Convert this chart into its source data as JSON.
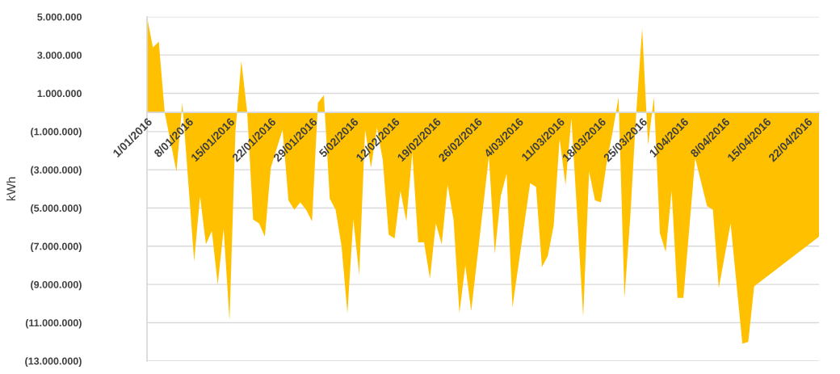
{
  "chart_data": {
    "type": "area",
    "ylabel": "kWh",
    "x": [
      "2016-01-01",
      "2016-01-02",
      "2016-01-03",
      "2016-01-04",
      "2016-01-06",
      "2016-01-07",
      "2016-01-09",
      "2016-01-10",
      "2016-01-11",
      "2016-01-12",
      "2016-01-13",
      "2016-01-14",
      "2016-01-15",
      "2016-01-16",
      "2016-01-17",
      "2016-01-18",
      "2016-01-19",
      "2016-01-20",
      "2016-01-21",
      "2016-01-22",
      "2016-01-24",
      "2016-01-25",
      "2016-01-26",
      "2016-01-27",
      "2016-01-28",
      "2016-01-29",
      "2016-01-30",
      "2016-01-31",
      "2016-02-01",
      "2016-02-02",
      "2016-02-03",
      "2016-02-04",
      "2016-02-05",
      "2016-02-06",
      "2016-02-07",
      "2016-02-08",
      "2016-02-09",
      "2016-02-10",
      "2016-02-11",
      "2016-02-12",
      "2016-02-13",
      "2016-02-14",
      "2016-02-15",
      "2016-02-16",
      "2016-02-17",
      "2016-02-18",
      "2016-02-19",
      "2016-02-20",
      "2016-02-21",
      "2016-02-22",
      "2016-02-23",
      "2016-02-24",
      "2016-02-25",
      "2016-02-28",
      "2016-02-29",
      "2016-03-01",
      "2016-03-02",
      "2016-03-03",
      "2016-03-06",
      "2016-03-07",
      "2016-03-08",
      "2016-03-09",
      "2016-03-10",
      "2016-03-11",
      "2016-03-12",
      "2016-03-13",
      "2016-03-15",
      "2016-03-16",
      "2016-03-17",
      "2016-03-18",
      "2016-03-19",
      "2016-03-20",
      "2016-03-21",
      "2016-03-22",
      "2016-03-23",
      "2016-03-24",
      "2016-03-25",
      "2016-03-26",
      "2016-03-27",
      "2016-03-28",
      "2016-03-29",
      "2016-03-30",
      "2016-03-31",
      "2016-04-01",
      "2016-04-03",
      "2016-04-05",
      "2016-04-06",
      "2016-04-07",
      "2016-04-09",
      "2016-04-11",
      "2016-04-12",
      "2016-04-13",
      "2016-04-24"
    ],
    "series": [
      {
        "color": "#ffc000",
        "values": [
          5000000,
          3400000,
          3700000,
          0,
          -3100000,
          500000,
          -7800000,
          -4400000,
          -6900000,
          -6200000,
          -9000000,
          -6100000,
          -10900000,
          -1000000,
          2700000,
          0,
          -5600000,
          -5800000,
          -6500000,
          -2900000,
          -900000,
          -4600000,
          -5100000,
          -4700000,
          -5100000,
          -5700000,
          500000,
          900000,
          -4500000,
          -5100000,
          -7000000,
          -10500000,
          -5600000,
          -8500000,
          -900000,
          -2900000,
          -800000,
          -2500000,
          -6400000,
          -6600000,
          -4100000,
          -5700000,
          -2100000,
          -6800000,
          -6800000,
          -8700000,
          -5800000,
          -6900000,
          -3800000,
          -5600000,
          -10500000,
          -8000000,
          -10400000,
          -2300000,
          -7400000,
          -4400000,
          -3200000,
          -10200000,
          -3700000,
          -3900000,
          -8100000,
          -7500000,
          -5900000,
          -1400000,
          -3800000,
          -300000,
          -10700000,
          -3100000,
          -4600000,
          -4700000,
          -2600000,
          -1000000,
          800000,
          -9700000,
          -5400000,
          0,
          4400000,
          -1700000,
          800000,
          -6300000,
          -7300000,
          -4100000,
          -9700000,
          -9700000,
          -2400000,
          -4900000,
          -5100000,
          -9200000,
          -5800000,
          -12100000,
          -12000000,
          -9100000,
          -6500000
        ]
      }
    ],
    "xlim": [
      "2016-01-01",
      "2016-04-24"
    ],
    "xticks": [
      {
        "value": "2016-01-01",
        "label": "1/01/2016"
      },
      {
        "value": "2016-01-08",
        "label": "8/01/2016"
      },
      {
        "value": "2016-01-15",
        "label": "15/01/2016"
      },
      {
        "value": "2016-01-22",
        "label": "22/01/2016"
      },
      {
        "value": "2016-01-29",
        "label": "29/01/2016"
      },
      {
        "value": "2016-02-05",
        "label": "5/02/2016"
      },
      {
        "value": "2016-02-12",
        "label": "12/02/2016"
      },
      {
        "value": "2016-02-19",
        "label": "19/02/2016"
      },
      {
        "value": "2016-02-26",
        "label": "26/02/2016"
      },
      {
        "value": "2016-03-04",
        "label": "4/03/2016"
      },
      {
        "value": "2016-03-11",
        "label": "11/03/2016"
      },
      {
        "value": "2016-03-18",
        "label": "18/03/2016"
      },
      {
        "value": "2016-03-25",
        "label": "25/03/2016"
      },
      {
        "value": "2016-04-01",
        "label": "1/04/2016"
      },
      {
        "value": "2016-04-08",
        "label": "8/04/2016"
      },
      {
        "value": "2016-04-15",
        "label": "15/04/2016"
      },
      {
        "value": "2016-04-22",
        "label": "22/04/2016"
      }
    ],
    "ylim": [
      -13000000,
      5000000
    ],
    "yticks": [
      {
        "value": 5000000,
        "label": "5.000.000"
      },
      {
        "value": 3000000,
        "label": "3.000.000"
      },
      {
        "value": 1000000,
        "label": "1.000.000"
      },
      {
        "value": -1000000,
        "label": "(1.000.000)"
      },
      {
        "value": -3000000,
        "label": "(3.000.000)"
      },
      {
        "value": -5000000,
        "label": "(5.000.000)"
      },
      {
        "value": -7000000,
        "label": "(7.000.000)"
      },
      {
        "value": -9000000,
        "label": "(9.000.000)"
      },
      {
        "value": -11000000,
        "label": "(11.000.000)"
      },
      {
        "value": -13000000,
        "label": "(13.000.000)"
      }
    ],
    "grid": "y"
  }
}
